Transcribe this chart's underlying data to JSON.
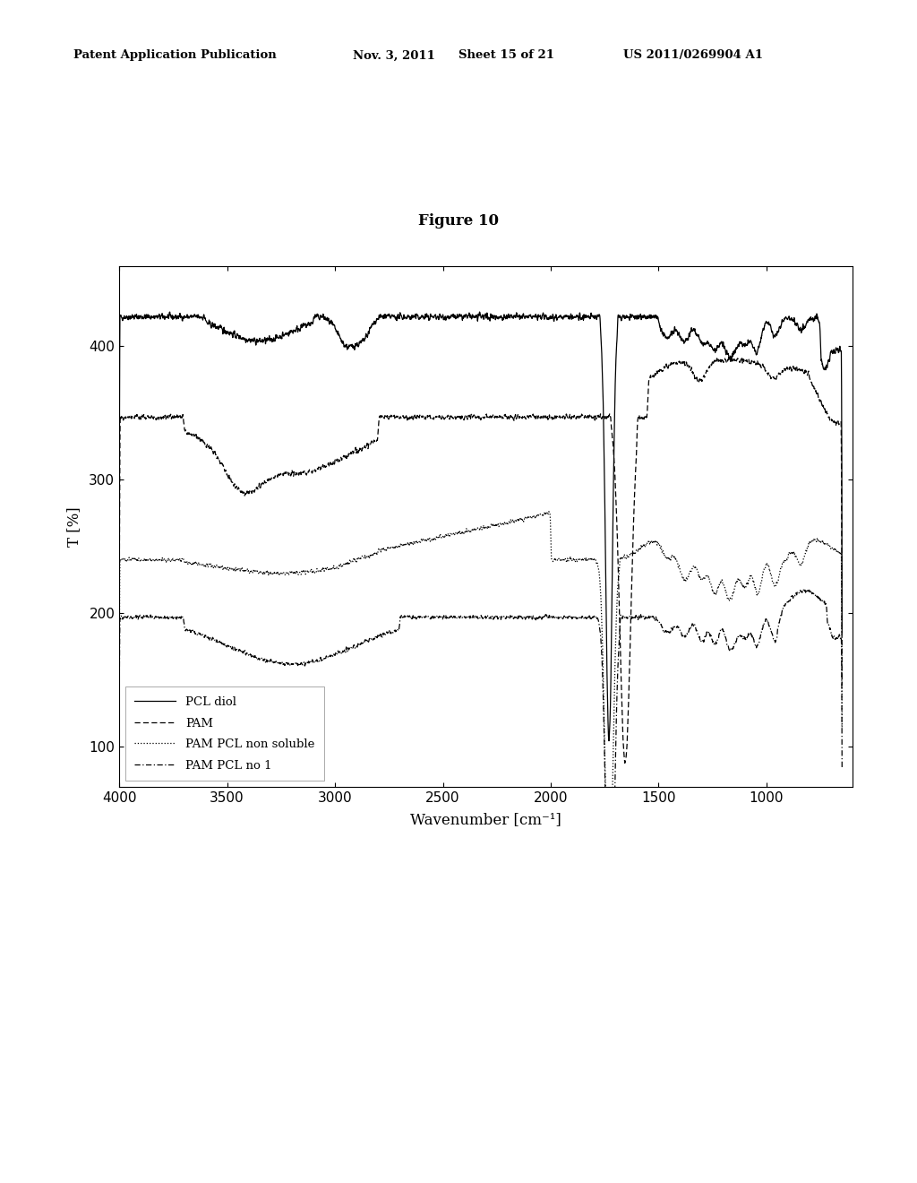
{
  "title": "Figure 10",
  "header_left": "Patent Application Publication",
  "header_mid": "Nov. 3, 2011   Sheet 15 of 21",
  "header_right": "US 2011/0269904 A1",
  "xlabel": "Wavenumber [cm⁻¹]",
  "ylabel": "T [%]",
  "xlim": [
    4000,
    600
  ],
  "ylim": [
    70,
    460
  ],
  "yticks": [
    100,
    200,
    300,
    400
  ],
  "xticks": [
    4000,
    3500,
    3000,
    2500,
    2000,
    1500,
    1000
  ],
  "legend_entries": [
    "PCL diol",
    "PAM",
    "PAM PCL non soluble",
    "PAM PCL no 1"
  ],
  "background_color": "#ffffff"
}
